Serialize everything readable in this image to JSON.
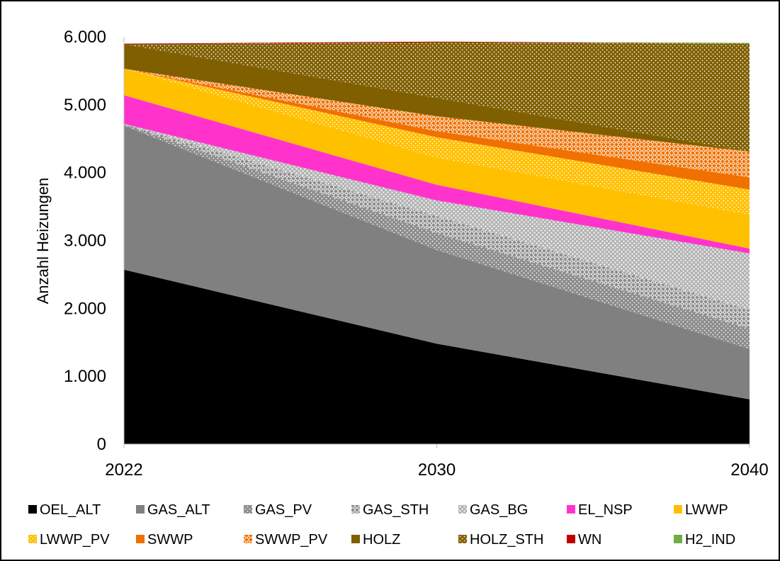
{
  "chart_data": {
    "type": "area",
    "stacked": true,
    "title": "",
    "xlabel": "",
    "ylabel": "Anzahl Heizungen",
    "x": [
      "2022",
      "2030",
      "2040"
    ],
    "y_ticks": [
      "0",
      "1.000",
      "2.000",
      "3.000",
      "4.000",
      "5.000",
      "6.000"
    ],
    "ylim": [
      0,
      6000
    ],
    "grid": false,
    "legend_position": "bottom",
    "series": [
      {
        "name": "OEL_ALT",
        "color": "#000000",
        "pattern": "solid",
        "values": [
          2570,
          1480,
          660
        ]
      },
      {
        "name": "GAS_ALT",
        "color": "#808080",
        "pattern": "solid",
        "values": [
          2120,
          1380,
          740
        ]
      },
      {
        "name": "GAS_PV",
        "color": "#8c8c8c",
        "pattern": "dots",
        "values": [
          20,
          250,
          300
        ]
      },
      {
        "name": "GAS_STH",
        "color": "#8c8c8c",
        "pattern": "diamond",
        "values": [
          10,
          250,
          280
        ]
      },
      {
        "name": "GAS_BG",
        "color": "#b3b3b3",
        "pattern": "grid",
        "values": [
          0,
          230,
          830
        ]
      },
      {
        "name": "EL_NSP",
        "color": "#ff33cc",
        "pattern": "solid",
        "values": [
          420,
          230,
          70
        ]
      },
      {
        "name": "LWWP",
        "color": "#ffc000",
        "pattern": "solid",
        "values": [
          390,
          400,
          500
        ]
      },
      {
        "name": "LWWP_PV",
        "color": "#ffc000",
        "pattern": "dots",
        "values": [
          0,
          300,
          370
        ]
      },
      {
        "name": "SWWP",
        "color": "#f07000",
        "pattern": "solid",
        "values": [
          0,
          90,
          180
        ]
      },
      {
        "name": "SWWP_PV",
        "color": "#f07000",
        "pattern": "diamond",
        "values": [
          0,
          220,
          380
        ]
      },
      {
        "name": "HOLZ",
        "color": "#7f5f00",
        "pattern": "solid",
        "values": [
          360,
          270,
          0
        ]
      },
      {
        "name": "HOLZ_STH",
        "color": "#7f5f00",
        "pattern": "dots",
        "values": [
          0,
          820,
          1590
        ]
      },
      {
        "name": "WN",
        "color": "#c00000",
        "pattern": "solid",
        "values": [
          10,
          10,
          0
        ]
      },
      {
        "name": "H2_IND",
        "color": "#70ad47",
        "pattern": "solid",
        "values": [
          0,
          0,
          10
        ]
      }
    ]
  }
}
